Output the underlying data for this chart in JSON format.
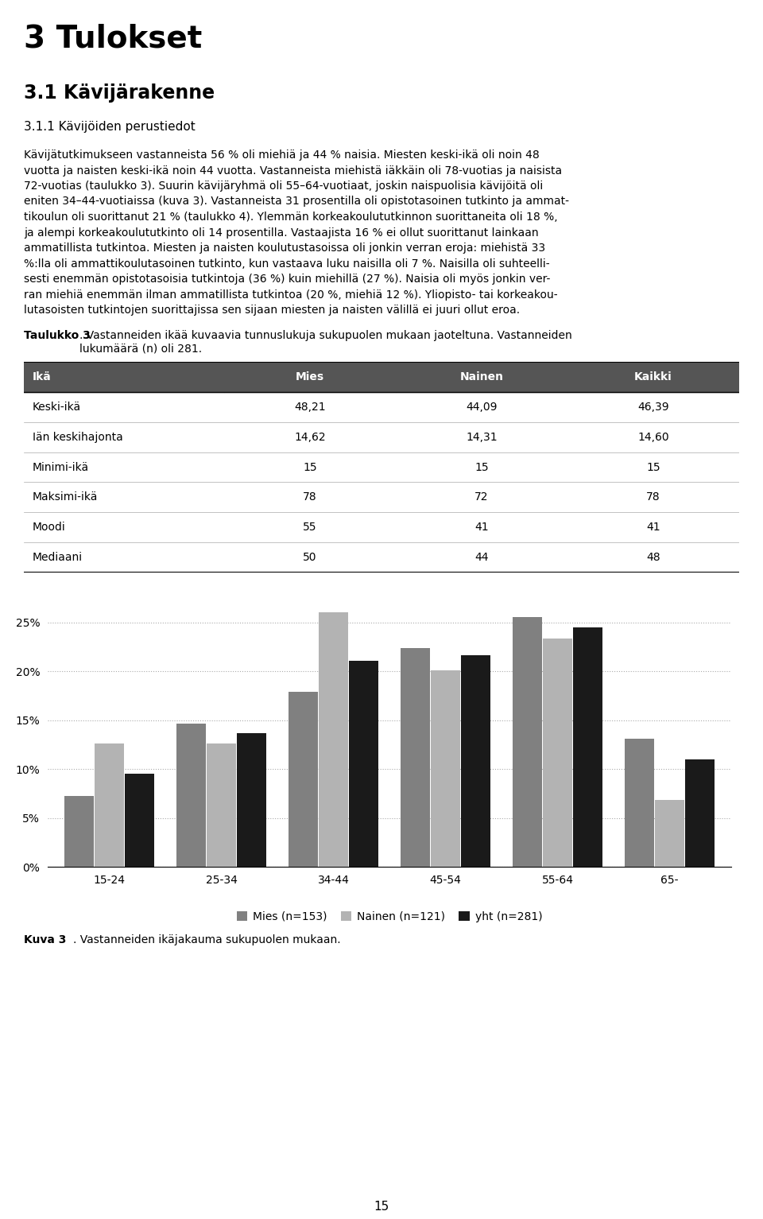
{
  "page_title": "3 Tulokset",
  "section_title": "3.1 Kävijärakenne",
  "subsection_title": "3.1.1 Kävijöiden perustiedot",
  "body_lines": [
    "Kävijätutkimukseen vastanneista 56 % oli miehiä ja 44 % naisia. Miesten keski-ikä oli noin 48",
    "vuotta ja naisten keski-ikä noin 44 vuotta. Vastanneista miehistä iäkkäin oli 78-vuotias ja naisista",
    "72-vuotias (taulukko 3). Suurin kävijäryhmä oli 55–64-vuotiaat, joskin naispuolisia kävijöitä oli",
    "eniten 34–44-vuotiaissa (kuva 3). Vastanneista 31 prosentilla oli opistotasoinen tutkinto ja ammat-",
    "tikoulun oli suorittanut 21 % (taulukko 4). Ylemmän korkeakoulututkinnon suorittaneita oli 18 %,",
    "ja alempi korkeakoulututkinto oli 14 prosentilla. Vastaajista 16 % ei ollut suorittanut lainkaan",
    "ammatillista tutkintoa. Miesten ja naisten koulutustasoissa oli jonkin verran eroja: miehistä 33",
    "%:lla oli ammattikoulutasoinen tutkinto, kun vastaava luku naisilla oli 7 %. Naisilla oli suhteelli-",
    "sesti enemmän opistotasoisia tutkintoja (36 %) kuin miehillä (27 %). Naisia oli myös jonkin ver-",
    "ran miehiä enemmän ilman ammatillista tutkintoa (20 %, miehiä 12 %). Yliopisto- tai korkeakou-",
    "lutasoisten tutkintojen suorittajissa sen sijaan miesten ja naisten välillä ei juuri ollut eroa."
  ],
  "table_caption_bold": "Taulukko 3",
  "table_caption_rest": ". Vastanneiden ikää kuvaavia tunnuslukuja sukupuolen mukaan jaoteltuna. Vastanneiden\nlukumäärä (n) oli 281.",
  "table_headers": [
    "Ikä",
    "Mies",
    "Nainen",
    "Kaikki"
  ],
  "table_rows": [
    [
      "Keski-ikä",
      "48,21",
      "44,09",
      "46,39"
    ],
    [
      "Iän keskihajonta",
      "14,62",
      "14,31",
      "14,60"
    ],
    [
      "Minimi-ikä",
      "15",
      "15",
      "15"
    ],
    [
      "Maksimi-ikä",
      "78",
      "72",
      "78"
    ],
    [
      "Moodi",
      "55",
      "41",
      "41"
    ],
    [
      "Mediaani",
      "50",
      "44",
      "48"
    ]
  ],
  "header_bg_color": "#555555",
  "header_text_color": "#ffffff",
  "bar_categories": [
    "15-24",
    "25-34",
    "34-44",
    "45-54",
    "55-64",
    "65-"
  ],
  "mies_values": [
    7.2,
    14.6,
    17.9,
    22.4,
    25.5,
    13.1
  ],
  "nainen_values": [
    12.6,
    12.6,
    26.0,
    20.1,
    23.3,
    6.8
  ],
  "yht_values": [
    9.5,
    13.7,
    21.1,
    21.6,
    24.5,
    11.0
  ],
  "mies_color": "#808080",
  "nainen_color": "#b3b3b3",
  "yht_color": "#1a1a1a",
  "legend_labels": [
    "Mies (n=153)",
    "Nainen (n=121)",
    "yht (n=281)"
  ],
  "bar_chart_caption_bold": "Kuva 3",
  "bar_chart_caption_rest": ". Vastanneiden ikäjakauma sukupuolen mukaan.",
  "page_number": "15",
  "yticks": [
    0.0,
    0.05,
    0.1,
    0.15,
    0.2,
    0.25
  ],
  "ytick_labels": [
    "0%",
    "5%",
    "10%",
    "15%",
    "20%",
    "25%"
  ]
}
